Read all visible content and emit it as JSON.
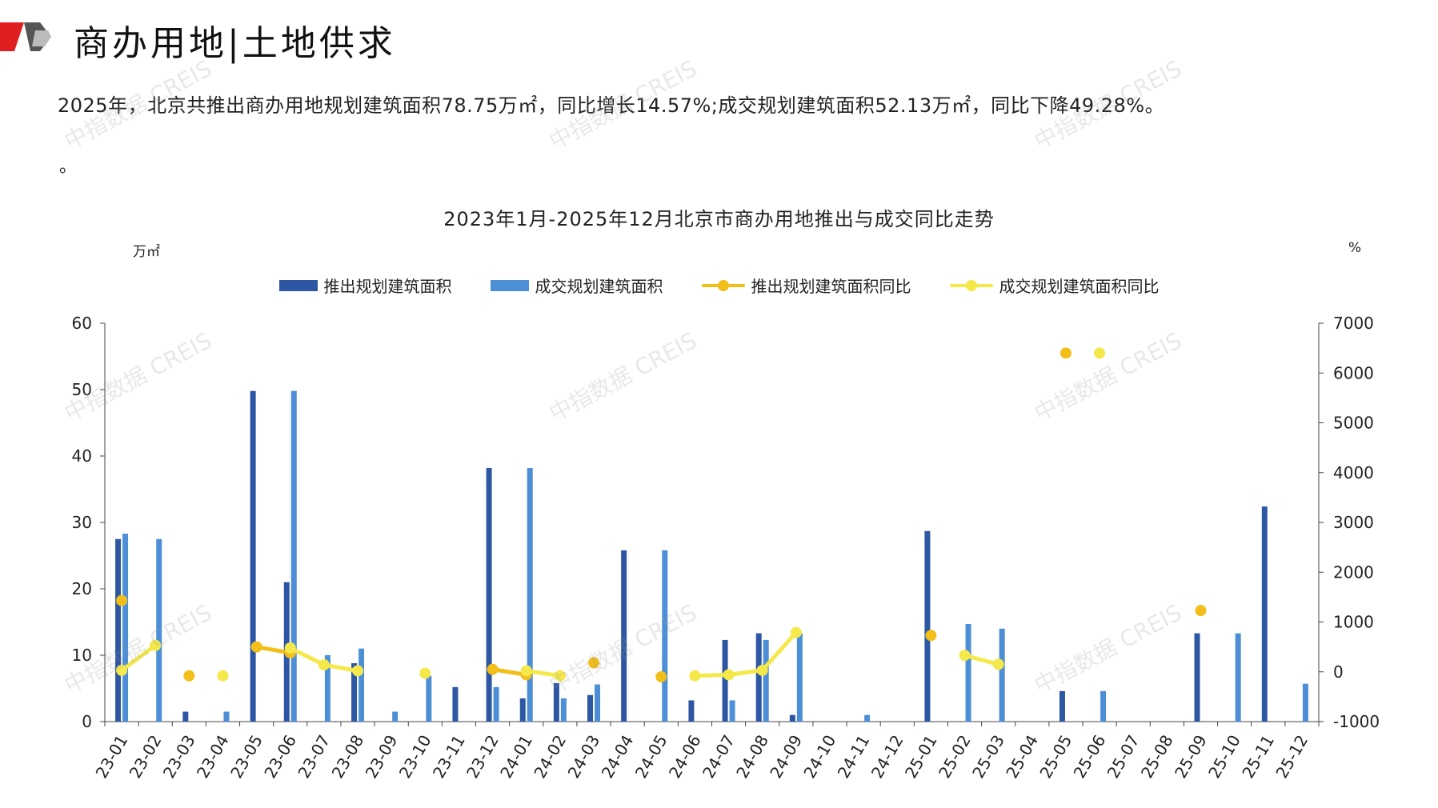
{
  "header": {
    "title": "商办用地|土地供求",
    "summary": "2025年，北京共推出商办用地规划建筑面积78.75万㎡，同比增长14.57%;成交规划建筑面积52.13万㎡，同比下降49.28%。",
    "summary_tail": "。",
    "watermark": "中指数据 CREIS",
    "logo_colors": [
      "#e02020",
      "#555555",
      "#bbbbbb"
    ]
  },
  "chart_data": {
    "type": "bar",
    "title": "2023年1月-2025年12月北京市商办用地推出与成交同比走势",
    "y_left_label": "万㎡",
    "y_right_label": "%",
    "y_left_range": [
      0,
      60
    ],
    "y_left_ticks": [
      "0",
      "10",
      "20",
      "30",
      "40",
      "50",
      "60"
    ],
    "y_right_range": [
      -1000,
      7000
    ],
    "y_right_ticks": [
      "-1000",
      "0",
      "1000",
      "2000",
      "3000",
      "4000",
      "5000",
      "6000",
      "7000"
    ],
    "legend_position": "top",
    "grid": false,
    "categories": [
      "23-01",
      "23-02",
      "23-03",
      "23-04",
      "23-05",
      "23-06",
      "23-07",
      "23-08",
      "23-09",
      "23-10",
      "23-11",
      "23-12",
      "24-01",
      "24-02",
      "24-03",
      "24-04",
      "24-05",
      "24-06",
      "24-07",
      "24-08",
      "24-09",
      "24-10",
      "24-11",
      "24-12",
      "25-01",
      "25-02",
      "25-03",
      "25-04",
      "25-05",
      "25-06",
      "25-07",
      "25-08",
      "25-09",
      "25-10",
      "25-11",
      "25-12"
    ],
    "series": [
      {
        "name": "推出规划建筑面积",
        "kind": "bar",
        "axis": "left",
        "color": "#2e57a3",
        "values": [
          27.5,
          0,
          1.5,
          0,
          49.8,
          21,
          0,
          8.8,
          0,
          0,
          5.2,
          38.2,
          3.5,
          5.8,
          4,
          25.8,
          0,
          3.2,
          12.3,
          13.3,
          1,
          0,
          0,
          0,
          28.7,
          0,
          0,
          0,
          4.6,
          0,
          0,
          0,
          13.3,
          0,
          32.4,
          0
        ]
      },
      {
        "name": "成交规划建筑面积",
        "kind": "bar",
        "axis": "left",
        "color": "#4d8fd6",
        "values": [
          28.3,
          27.5,
          0,
          1.5,
          0,
          49.8,
          10,
          11,
          1.5,
          6.9,
          0,
          5.2,
          38.2,
          3.5,
          5.6,
          0,
          25.8,
          0,
          3.2,
          12.3,
          13.3,
          0,
          1,
          0,
          0,
          14.7,
          14,
          0,
          0,
          4.6,
          0,
          0,
          0,
          13.3,
          0,
          5.7
        ]
      },
      {
        "name": "推出规划建筑面积同比",
        "kind": "line",
        "axis": "right",
        "color": "#f2be1a",
        "values": [
          1430,
          null,
          -80,
          null,
          500,
          380,
          null,
          null,
          null,
          null,
          null,
          50,
          -60,
          null,
          180,
          null,
          -100,
          null,
          null,
          null,
          null,
          null,
          null,
          null,
          730,
          null,
          null,
          null,
          6400,
          null,
          null,
          null,
          1230,
          null,
          null,
          null
        ]
      },
      {
        "name": "成交规划建筑面积同比",
        "kind": "line",
        "axis": "right",
        "color": "#f5e84a",
        "values": [
          30,
          530,
          null,
          -80,
          null,
          480,
          140,
          20,
          null,
          -30,
          null,
          null,
          20,
          -80,
          null,
          null,
          null,
          -80,
          -60,
          30,
          790,
          null,
          null,
          null,
          null,
          330,
          150,
          null,
          null,
          6400,
          null,
          null,
          null,
          null,
          null,
          null
        ]
      }
    ]
  }
}
